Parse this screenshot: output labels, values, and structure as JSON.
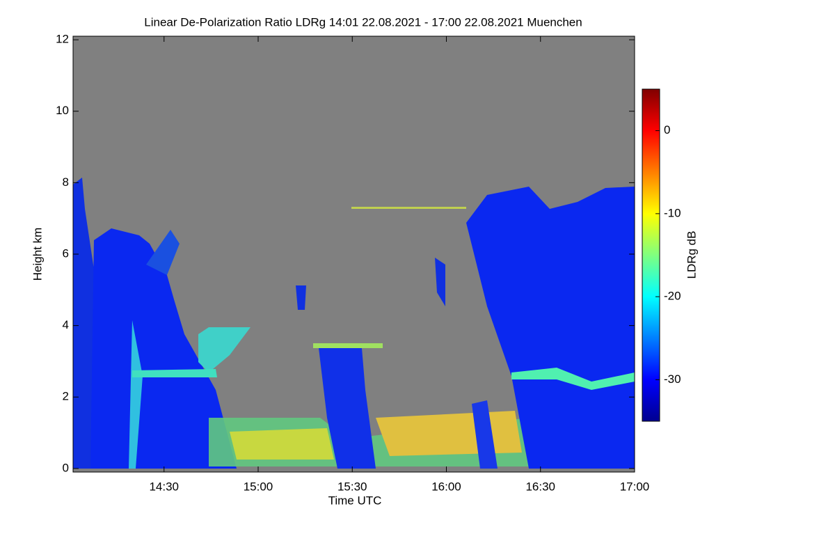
{
  "chart_data": {
    "type": "heatmap",
    "title": "Linear De-Polarization Ratio LDRg   14:01 22.08.2021 - 17:00 22.08.2021 Muenchen",
    "x_label": "Time UTC",
    "y_label": "Height km",
    "colorbar_label": "LDRg dB",
    "xlim": [
      841,
      1020
    ],
    "xticks": [
      {
        "value": 870,
        "label": "14:30"
      },
      {
        "value": 900,
        "label": "15:00"
      },
      {
        "value": 930,
        "label": "15:30"
      },
      {
        "value": 960,
        "label": "16:00"
      },
      {
        "value": 990,
        "label": "16:30"
      },
      {
        "value": 1020,
        "label": "17:00"
      }
    ],
    "ylim": [
      -0.1,
      12.1
    ],
    "yticks": [
      0,
      2,
      4,
      6,
      8,
      10,
      12
    ],
    "clim": [
      -35,
      5
    ],
    "cticks": [
      0,
      -10,
      -20,
      -30
    ],
    "colormap": "jet"
  }
}
